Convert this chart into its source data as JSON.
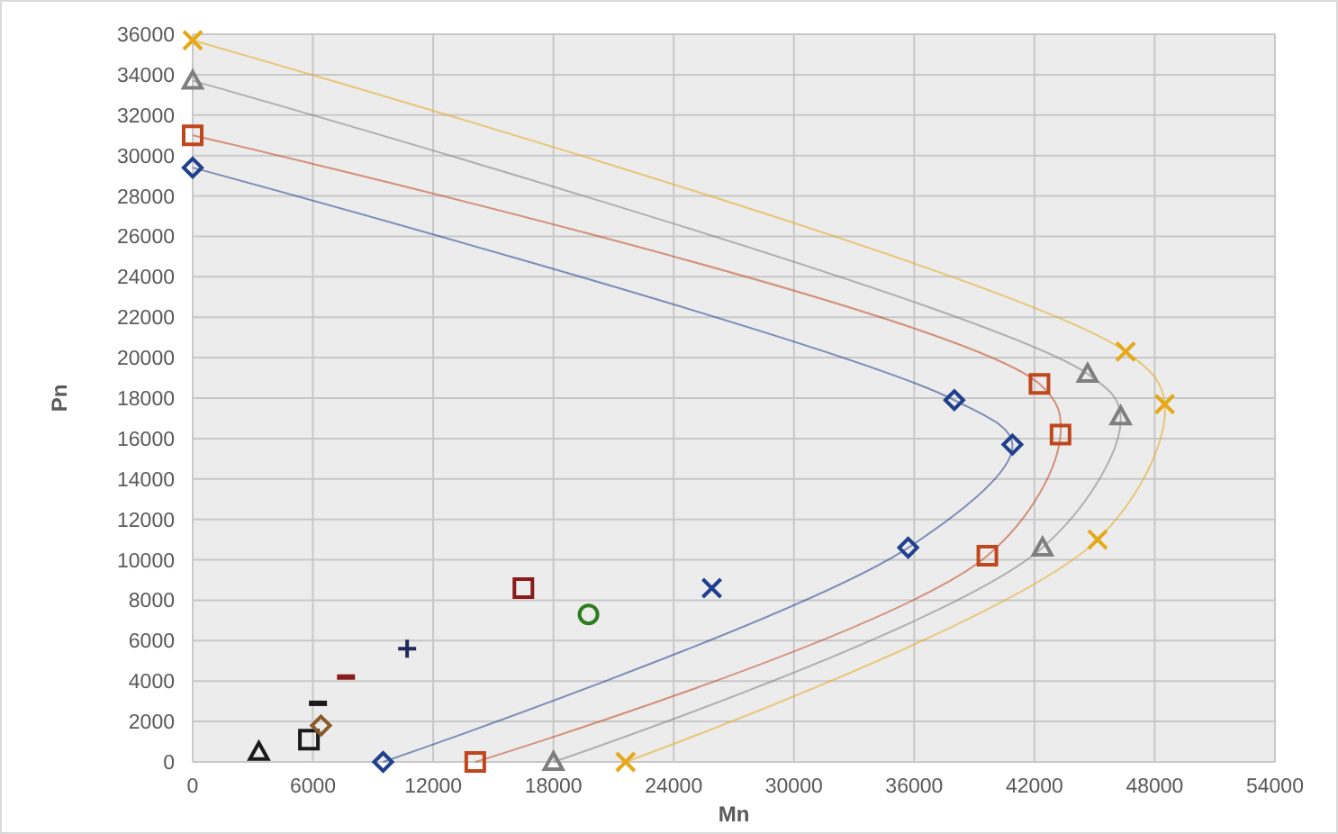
{
  "chart_data": {
    "type": "line",
    "xlabel": "Mn",
    "ylabel": "Pn",
    "xlim": [
      0,
      54000
    ],
    "xticks": [
      0,
      6000,
      12000,
      18000,
      24000,
      30000,
      36000,
      42000,
      48000,
      54000
    ],
    "ylim": [
      0,
      36000
    ],
    "yticks": [
      0,
      2000,
      4000,
      6000,
      8000,
      10000,
      12000,
      14000,
      16000,
      18000,
      20000,
      22000,
      24000,
      26000,
      28000,
      30000,
      32000,
      34000,
      36000
    ],
    "grid": true,
    "series": [
      {
        "marker": "diamond",
        "color": "#203f8c",
        "x": [
          0,
          38000,
          40900,
          35700,
          9500
        ],
        "values": [
          29400,
          17900,
          15700,
          10600,
          0
        ]
      },
      {
        "marker": "square",
        "color": "#c0461c",
        "x": [
          0,
          42250,
          43300,
          39650,
          14100
        ],
        "values": [
          31000,
          18700,
          16200,
          10200,
          0
        ]
      },
      {
        "marker": "triangle",
        "color": "#7f7f7f",
        "x": [
          0,
          44650,
          46300,
          42400,
          18000
        ],
        "values": [
          33700,
          19200,
          17100,
          10600,
          0
        ]
      },
      {
        "marker": "cross",
        "color": "#e6a817",
        "x": [
          0,
          46550,
          48500,
          45150,
          21600
        ],
        "values": [
          35700,
          20300,
          17700,
          11000,
          0
        ]
      },
      {
        "type": "scatter",
        "marker": "triangle",
        "color": "#1a1a1a",
        "x": [
          3300
        ],
        "values": [
          500
        ]
      },
      {
        "type": "scatter",
        "marker": "square",
        "color": "#1a1a1a",
        "x": [
          5800
        ],
        "values": [
          1100
        ]
      },
      {
        "type": "scatter",
        "marker": "diamond",
        "color": "#8b5a2b",
        "x": [
          6400
        ],
        "values": [
          1800
        ]
      },
      {
        "type": "scatter",
        "color": "#1a1a1a",
        "x": [
          6250
        ],
        "values": [
          2900
        ]
      },
      {
        "type": "scatter",
        "color": "#8b1a1a",
        "x": [
          7650
        ],
        "values": [
          4200
        ]
      },
      {
        "type": "scatter",
        "marker": "plus",
        "color": "#1f2a5a",
        "x": [
          10700
        ],
        "values": [
          5600
        ]
      },
      {
        "type": "scatter",
        "marker": "square",
        "color": "#8b1a1a",
        "x": [
          16500
        ],
        "values": [
          8600
        ]
      },
      {
        "type": "scatter",
        "marker": "circle",
        "color": "#2e7d1e",
        "x": [
          19750
        ],
        "values": [
          7300
        ]
      },
      {
        "type": "scatter",
        "marker": "cross",
        "color": "#1f3f8f",
        "x": [
          25900
        ],
        "values": [
          8600
        ]
      }
    ]
  }
}
